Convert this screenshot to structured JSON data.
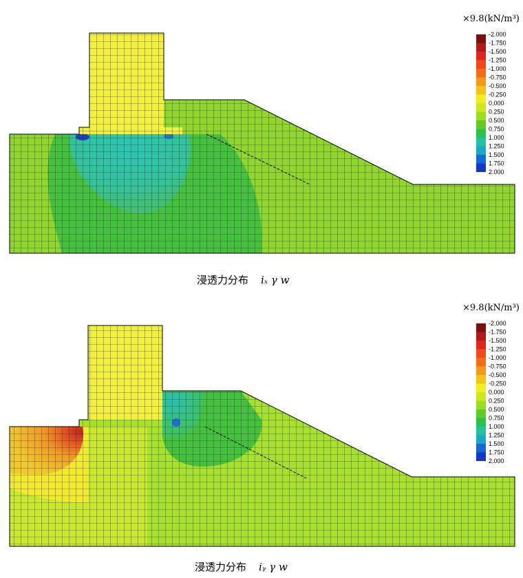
{
  "legend": {
    "unit_label": "×9.8(kN/m³)",
    "ticks": [
      "-2.000",
      "-1.750",
      "-1.500",
      "-1.250",
      "-1.000",
      "-0.750",
      "-0.500",
      "-0.250",
      "0.000",
      "0.250",
      "0.500",
      "0.750",
      "1.000",
      "1.250",
      "1.500",
      "1.750",
      "2.000"
    ],
    "colors": [
      "#7a1010",
      "#b01a1a",
      "#e0261e",
      "#f04a1c",
      "#f46e1a",
      "#f39a1c",
      "#f2c418",
      "#f4ec1c",
      "#cfe81c",
      "#9ade22",
      "#5ccc2a",
      "#2cc24a",
      "#22c4a0",
      "#1ca8c4",
      "#1468d8",
      "#1238c8",
      "#101aa0"
    ]
  },
  "panels": [
    {
      "caption_text": "浸透力分布",
      "caption_symbol": "iₓ γ w",
      "colors": {
        "base": "#8fd82a",
        "main": "#41c43a",
        "core": "#2ec6a8",
        "hot": "#1b3fd0",
        "structure": "#f2f03a"
      }
    },
    {
      "caption_text": "浸透力分布",
      "caption_symbol": "iᵧ γ w",
      "colors": {
        "base": "#a6e22a",
        "main": "#41c43a",
        "core": "#2ec6a8",
        "hot": "#1b6fd6",
        "warm1": "#f4ea2a",
        "warm2": "#f29a22",
        "warm3": "#e03a1a",
        "structure": "#f2f03a"
      }
    }
  ]
}
